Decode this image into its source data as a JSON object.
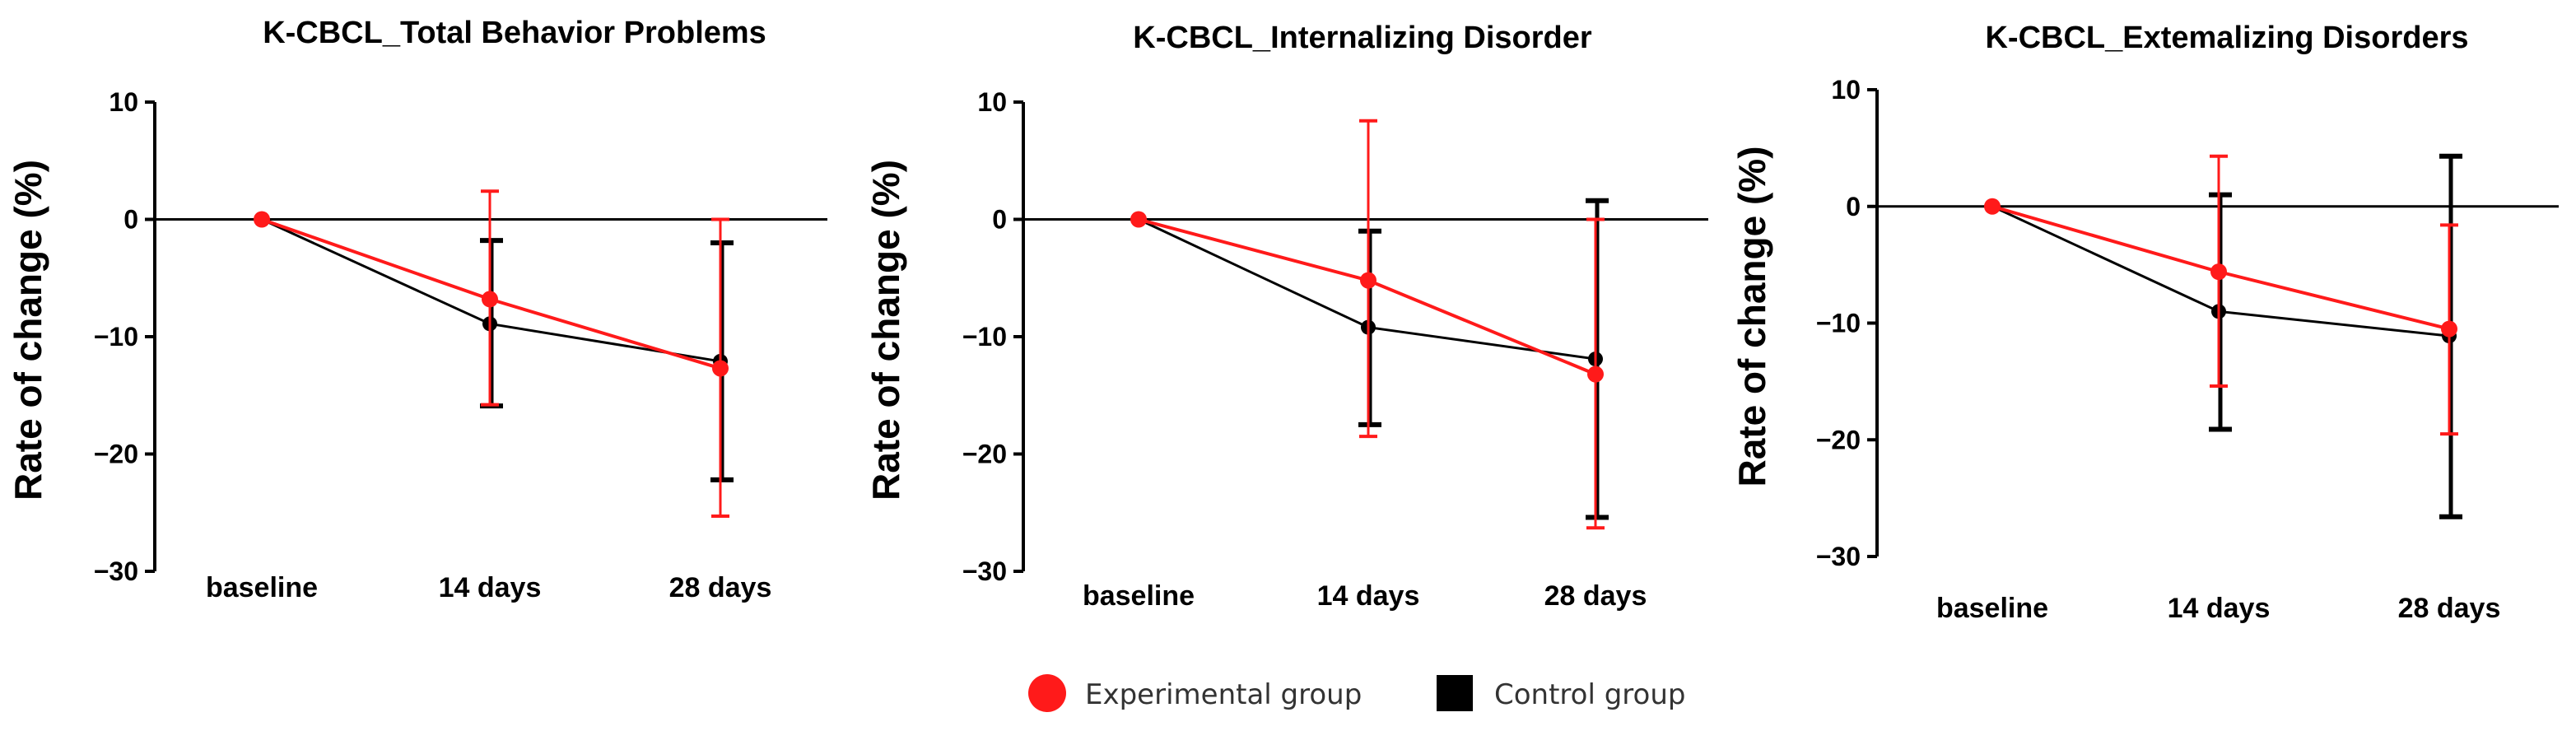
{
  "legend": {
    "experimental_label": "Experimental group",
    "control_label": "Control group",
    "experimental_color": "#ff1a1a",
    "control_color": "#000000"
  },
  "chart_data": [
    {
      "type": "line",
      "title": "K-CBCL_Total Behavior Problems",
      "ylabel": "Rate of change (%)",
      "xlabel": "",
      "categories": [
        "baseline",
        "14 days",
        "28 days"
      ],
      "ylim": [
        -30,
        10
      ],
      "yticks": [
        10,
        0,
        -10,
        -20,
        -30
      ],
      "ytick_labels": [
        "10",
        "0",
        "−10",
        "−20",
        "−30"
      ],
      "reference_line": 0,
      "series": [
        {
          "name": "Experimental group",
          "color": "#ff1a1a",
          "values": [
            0,
            -6.8,
            -12.7
          ],
          "error_low": [
            0,
            -15.8,
            -25.3
          ],
          "error_high": [
            0,
            2.4,
            0
          ]
        },
        {
          "name": "Control group",
          "color": "#000000",
          "values": [
            0,
            -8.9,
            -12.1
          ],
          "error_low": [
            0,
            -15.9,
            -22.2
          ],
          "error_high": [
            0,
            -1.8,
            -2.0
          ]
        }
      ]
    },
    {
      "type": "line",
      "title": "K-CBCL_Internalizing Disorder",
      "ylabel": "Rate of change (%)",
      "xlabel": "",
      "categories": [
        "baseline",
        "14 days",
        "28 days"
      ],
      "ylim": [
        -30,
        10
      ],
      "yticks": [
        10,
        0,
        -10,
        -20,
        -30
      ],
      "ytick_labels": [
        "10",
        "0",
        "−10",
        "−20",
        "−30"
      ],
      "reference_line": 0,
      "series": [
        {
          "name": "Experimental group",
          "color": "#ff1a1a",
          "values": [
            0,
            -5.2,
            -13.2
          ],
          "error_low": [
            0,
            -18.5,
            -26.3
          ],
          "error_high": [
            0,
            8.4,
            0
          ]
        },
        {
          "name": "Control group",
          "color": "#000000",
          "values": [
            0,
            -9.2,
            -11.9
          ],
          "error_low": [
            0,
            -17.5,
            -25.4
          ],
          "error_high": [
            0,
            -1.0,
            1.6
          ]
        }
      ]
    },
    {
      "type": "line",
      "title": "K-CBCL_Extemalizing Disorders",
      "ylabel": "Rate of change (%)",
      "xlabel": "",
      "categories": [
        "baseline",
        "14 days",
        "28 days"
      ],
      "ylim": [
        -30,
        10
      ],
      "yticks": [
        10,
        0,
        -10,
        -20,
        -30
      ],
      "ytick_labels": [
        "10",
        "0",
        "−10",
        "−20",
        "−30"
      ],
      "reference_line": 0,
      "series": [
        {
          "name": "Experimental group",
          "color": "#ff1a1a",
          "values": [
            0,
            -5.6,
            -10.5
          ],
          "error_low": [
            0,
            -15.4,
            -19.5
          ],
          "error_high": [
            0,
            4.3,
            -1.6
          ]
        },
        {
          "name": "Control group",
          "color": "#000000",
          "values": [
            0,
            -9.0,
            -11.1
          ],
          "error_low": [
            0,
            -19.1,
            -26.6
          ],
          "error_high": [
            0,
            1.0,
            4.3
          ]
        }
      ]
    }
  ]
}
